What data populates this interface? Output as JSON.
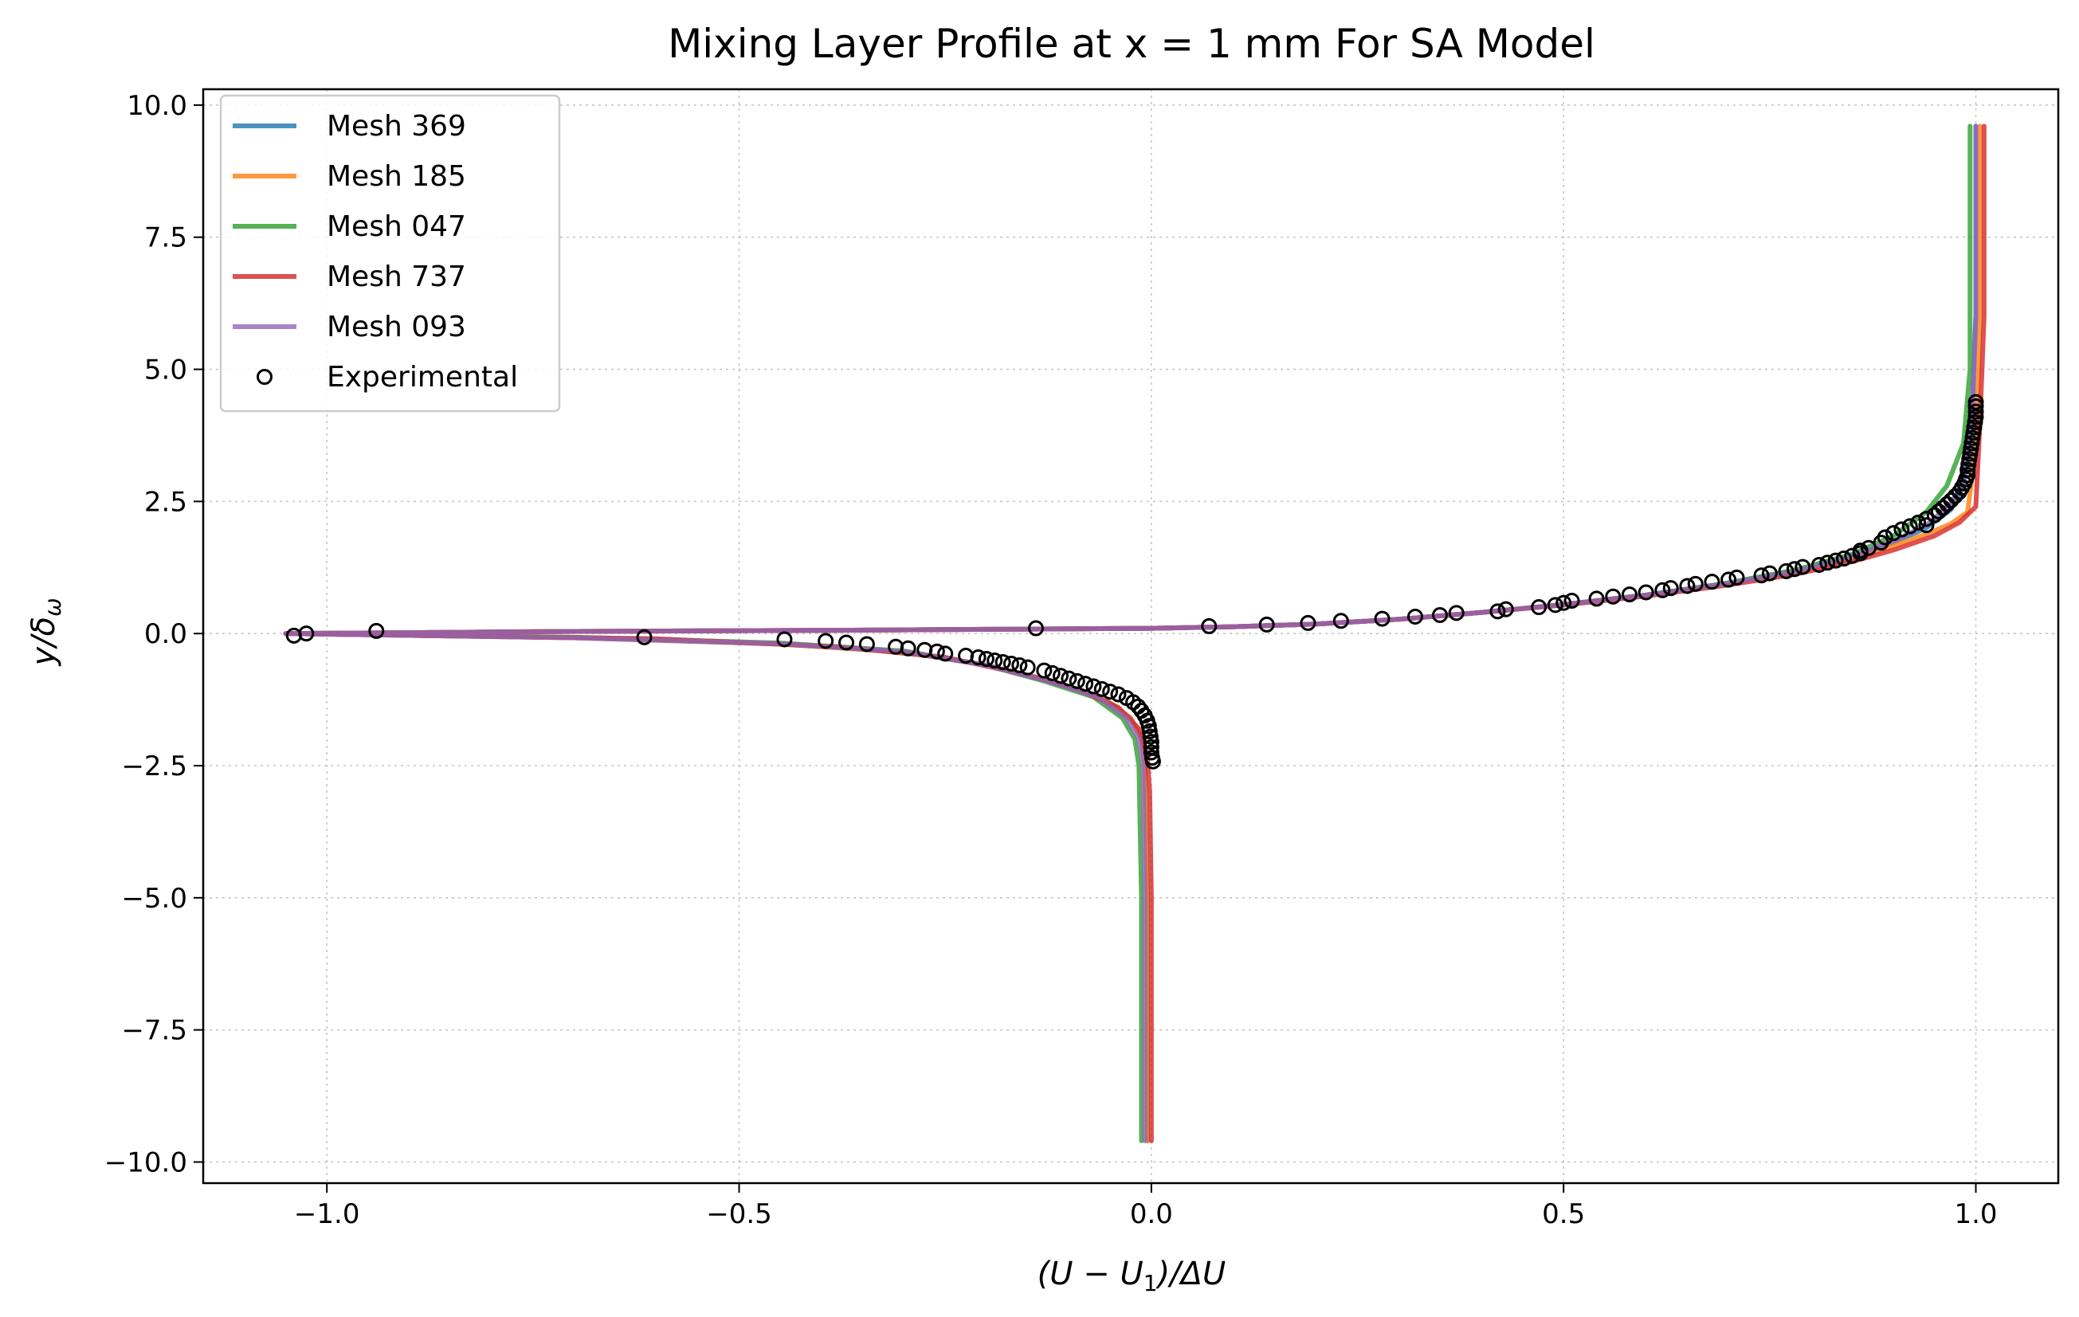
{
  "chart_data": {
    "type": "line",
    "title": "Mixing Layer Profile at x = 1 mm For SA Model",
    "xlabel": "(U − U",
    "xlabel_sub": "1",
    "xlabel_tail": ")/ΔU",
    "ylabel": "y/δ",
    "ylabel_sub": "ω",
    "xlim": [
      -1.15,
      1.1
    ],
    "ylim": [
      -10.4,
      10.3
    ],
    "xticks": [
      -1.0,
      -0.5,
      0.0,
      0.5,
      1.0
    ],
    "xtick_labels": [
      "−1.0",
      "−0.5",
      "0.0",
      "0.5",
      "1.0"
    ],
    "yticks": [
      10.0,
      7.5,
      5.0,
      2.5,
      0.0,
      -2.5,
      -5.0,
      -7.5,
      -10.0
    ],
    "ytick_labels": [
      "10.0",
      "7.5",
      "5.0",
      "2.5",
      "0.0",
      "−2.5",
      "−5.0",
      "−7.5",
      "−10.0"
    ],
    "grid": true,
    "legend_position": "top-left",
    "series": [
      {
        "name": "Mesh 369",
        "color": "#1f77b4",
        "dx": 0.0,
        "up": 1.0,
        "lo": 1.0,
        "points": [
          [
            -0.005,
            -9.6
          ],
          [
            -0.005,
            -5.0
          ],
          [
            -0.008,
            -2.5
          ],
          [
            -0.012,
            -2.0
          ],
          [
            -0.025,
            -1.6
          ],
          [
            -0.06,
            -1.2
          ],
          [
            -0.12,
            -0.9
          ],
          [
            -0.2,
            -0.6
          ],
          [
            -0.3,
            -0.35
          ],
          [
            -0.45,
            -0.2
          ],
          [
            -0.7,
            -0.08
          ],
          [
            -1.05,
            0.0
          ],
          [
            -0.7,
            0.04
          ],
          [
            -0.4,
            0.06
          ],
          [
            -0.2,
            0.08
          ],
          [
            0.0,
            0.1
          ],
          [
            0.1,
            0.13
          ],
          [
            0.2,
            0.18
          ],
          [
            0.3,
            0.27
          ],
          [
            0.4,
            0.4
          ],
          [
            0.5,
            0.55
          ],
          [
            0.6,
            0.73
          ],
          [
            0.7,
            0.95
          ],
          [
            0.78,
            1.18
          ],
          [
            0.85,
            1.45
          ],
          [
            0.9,
            1.72
          ],
          [
            0.94,
            2.0
          ],
          [
            0.97,
            2.35
          ],
          [
            0.985,
            2.8
          ],
          [
            0.995,
            4.0
          ],
          [
            1.0,
            6.0
          ],
          [
            1.0,
            9.6
          ]
        ]
      },
      {
        "name": "Mesh 185",
        "color": "#ff7f0e",
        "dx": 0.0,
        "up": 0.995,
        "lo": 1.0,
        "points": [
          [
            -0.005,
            -9.6
          ],
          [
            -0.005,
            -5.0
          ],
          [
            -0.008,
            -2.5
          ],
          [
            -0.012,
            -2.0
          ],
          [
            -0.025,
            -1.6
          ],
          [
            -0.06,
            -1.2
          ],
          [
            -0.12,
            -0.9
          ],
          [
            -0.2,
            -0.6
          ],
          [
            -0.3,
            -0.35
          ],
          [
            -0.45,
            -0.2
          ],
          [
            -0.7,
            -0.08
          ],
          [
            -1.05,
            0.0
          ],
          [
            -0.7,
            0.04
          ],
          [
            -0.4,
            0.06
          ],
          [
            -0.2,
            0.08
          ],
          [
            0.0,
            0.1
          ],
          [
            0.1,
            0.13
          ],
          [
            0.2,
            0.18
          ],
          [
            0.3,
            0.27
          ],
          [
            0.4,
            0.4
          ],
          [
            0.5,
            0.55
          ],
          [
            0.6,
            0.73
          ],
          [
            0.7,
            0.95
          ],
          [
            0.78,
            1.16
          ],
          [
            0.85,
            1.42
          ],
          [
            0.9,
            1.66
          ],
          [
            0.94,
            1.88
          ],
          [
            0.97,
            2.08
          ],
          [
            0.99,
            2.3
          ],
          [
            1.0,
            3.5
          ],
          [
            1.005,
            6.0
          ],
          [
            1.005,
            9.6
          ]
        ]
      },
      {
        "name": "Mesh 047",
        "color": "#2ca02c",
        "dx": 0.0,
        "up": 1.0,
        "lo": 1.0,
        "points": [
          [
            -0.012,
            -9.6
          ],
          [
            -0.012,
            -5.0
          ],
          [
            -0.015,
            -2.5
          ],
          [
            -0.02,
            -2.0
          ],
          [
            -0.035,
            -1.6
          ],
          [
            -0.07,
            -1.2
          ],
          [
            -0.13,
            -0.9
          ],
          [
            -0.2,
            -0.6
          ],
          [
            -0.3,
            -0.33
          ],
          [
            -0.45,
            -0.18
          ],
          [
            -0.7,
            -0.07
          ],
          [
            -1.05,
            0.0
          ],
          [
            -0.7,
            0.04
          ],
          [
            -0.4,
            0.06
          ],
          [
            -0.2,
            0.08
          ],
          [
            0.0,
            0.1
          ],
          [
            0.1,
            0.13
          ],
          [
            0.2,
            0.18
          ],
          [
            0.3,
            0.27
          ],
          [
            0.4,
            0.4
          ],
          [
            0.5,
            0.55
          ],
          [
            0.6,
            0.73
          ],
          [
            0.7,
            0.96
          ],
          [
            0.78,
            1.2
          ],
          [
            0.85,
            1.5
          ],
          [
            0.9,
            1.85
          ],
          [
            0.94,
            2.3
          ],
          [
            0.965,
            2.8
          ],
          [
            0.985,
            3.6
          ],
          [
            0.993,
            5.0
          ],
          [
            0.993,
            9.6
          ]
        ]
      },
      {
        "name": "Mesh 737",
        "color": "#d62728",
        "dx": 0.0,
        "up": 1.0,
        "lo": 1.0,
        "points": [
          [
            0.0,
            -9.6
          ],
          [
            0.0,
            -5.0
          ],
          [
            -0.002,
            -3.0
          ],
          [
            -0.005,
            -2.3
          ],
          [
            -0.015,
            -1.8
          ],
          [
            -0.04,
            -1.4
          ],
          [
            -0.09,
            -1.05
          ],
          [
            -0.16,
            -0.75
          ],
          [
            -0.25,
            -0.45
          ],
          [
            -0.38,
            -0.25
          ],
          [
            -0.6,
            -0.1
          ],
          [
            -1.05,
            0.0
          ],
          [
            -0.7,
            0.04
          ],
          [
            -0.4,
            0.06
          ],
          [
            -0.2,
            0.08
          ],
          [
            0.0,
            0.1
          ],
          [
            0.1,
            0.13
          ],
          [
            0.2,
            0.18
          ],
          [
            0.3,
            0.27
          ],
          [
            0.4,
            0.4
          ],
          [
            0.5,
            0.54
          ],
          [
            0.6,
            0.71
          ],
          [
            0.7,
            0.92
          ],
          [
            0.78,
            1.12
          ],
          [
            0.85,
            1.36
          ],
          [
            0.9,
            1.58
          ],
          [
            0.95,
            1.85
          ],
          [
            0.98,
            2.1
          ],
          [
            1.0,
            2.4
          ],
          [
            1.005,
            4.0
          ],
          [
            1.01,
            6.0
          ],
          [
            1.01,
            9.6
          ]
        ]
      },
      {
        "name": "Mesh 093",
        "color": "#9467bd",
        "dx": 0.0,
        "up": 1.0,
        "lo": 1.0,
        "points": [
          [
            -0.008,
            -9.6
          ],
          [
            -0.008,
            -5.0
          ],
          [
            -0.01,
            -2.5
          ],
          [
            -0.015,
            -2.0
          ],
          [
            -0.03,
            -1.6
          ],
          [
            -0.065,
            -1.2
          ],
          [
            -0.125,
            -0.9
          ],
          [
            -0.2,
            -0.6
          ],
          [
            -0.3,
            -0.34
          ],
          [
            -0.45,
            -0.19
          ],
          [
            -0.7,
            -0.08
          ],
          [
            -1.05,
            0.0
          ],
          [
            -0.7,
            0.04
          ],
          [
            -0.4,
            0.06
          ],
          [
            -0.2,
            0.08
          ],
          [
            0.0,
            0.1
          ],
          [
            0.1,
            0.13
          ],
          [
            0.2,
            0.18
          ],
          [
            0.3,
            0.27
          ],
          [
            0.4,
            0.4
          ],
          [
            0.5,
            0.55
          ],
          [
            0.6,
            0.73
          ],
          [
            0.7,
            0.95
          ],
          [
            0.78,
            1.17
          ],
          [
            0.85,
            1.46
          ],
          [
            0.9,
            1.75
          ],
          [
            0.94,
            2.05
          ],
          [
            0.97,
            2.45
          ],
          [
            0.985,
            2.9
          ],
          [
            0.995,
            4.0
          ],
          [
            1.0,
            6.0
          ],
          [
            1.0,
            9.6
          ]
        ]
      }
    ],
    "experimental": {
      "name": "Experimental",
      "points": [
        [
          -1.04,
          -0.04
        ],
        [
          -1.025,
          0.0
        ],
        [
          -0.94,
          0.05
        ],
        [
          -0.615,
          -0.07
        ],
        [
          -0.445,
          -0.11
        ],
        [
          -0.395,
          -0.14
        ],
        [
          -0.37,
          -0.17
        ],
        [
          -0.345,
          -0.2
        ],
        [
          -0.31,
          -0.25
        ],
        [
          -0.295,
          -0.28
        ],
        [
          -0.275,
          -0.31
        ],
        [
          -0.26,
          -0.34
        ],
        [
          -0.25,
          -0.38
        ],
        [
          -0.225,
          -0.42
        ],
        [
          -0.21,
          -0.45
        ],
        [
          -0.2,
          -0.48
        ],
        [
          -0.19,
          -0.51
        ],
        [
          -0.18,
          -0.54
        ],
        [
          -0.17,
          -0.57
        ],
        [
          -0.16,
          -0.6
        ],
        [
          -0.15,
          -0.64
        ],
        [
          -0.13,
          -0.7
        ],
        [
          -0.12,
          -0.75
        ],
        [
          -0.11,
          -0.8
        ],
        [
          -0.1,
          -0.85
        ],
        [
          -0.09,
          -0.9
        ],
        [
          -0.08,
          -0.95
        ],
        [
          -0.07,
          -1.0
        ],
        [
          -0.06,
          -1.05
        ],
        [
          -0.05,
          -1.1
        ],
        [
          -0.04,
          -1.15
        ],
        [
          -0.03,
          -1.22
        ],
        [
          -0.022,
          -1.3
        ],
        [
          -0.016,
          -1.38
        ],
        [
          -0.012,
          -1.46
        ],
        [
          -0.008,
          -1.55
        ],
        [
          -0.005,
          -1.65
        ],
        [
          -0.003,
          -1.75
        ],
        [
          -0.002,
          -1.85
        ],
        [
          -0.001,
          -1.95
        ],
        [
          0.0,
          -2.05
        ],
        [
          0.0,
          -2.15
        ],
        [
          0.0,
          -2.25
        ],
        [
          0.001,
          -2.35
        ],
        [
          0.002,
          -2.42
        ],
        [
          -0.14,
          0.1
        ],
        [
          0.07,
          0.14
        ],
        [
          0.14,
          0.17
        ],
        [
          0.19,
          0.2
        ],
        [
          0.23,
          0.24
        ],
        [
          0.28,
          0.28
        ],
        [
          0.32,
          0.32
        ],
        [
          0.35,
          0.35
        ],
        [
          0.37,
          0.39
        ],
        [
          0.42,
          0.42
        ],
        [
          0.43,
          0.46
        ],
        [
          0.47,
          0.5
        ],
        [
          0.49,
          0.54
        ],
        [
          0.5,
          0.58
        ],
        [
          0.51,
          0.62
        ],
        [
          0.54,
          0.66
        ],
        [
          0.56,
          0.7
        ],
        [
          0.58,
          0.74
        ],
        [
          0.6,
          0.78
        ],
        [
          0.62,
          0.82
        ],
        [
          0.63,
          0.86
        ],
        [
          0.65,
          0.9
        ],
        [
          0.66,
          0.94
        ],
        [
          0.68,
          0.98
        ],
        [
          0.7,
          1.02
        ],
        [
          0.71,
          1.06
        ],
        [
          0.74,
          1.1
        ],
        [
          0.75,
          1.14
        ],
        [
          0.77,
          1.18
        ],
        [
          0.78,
          1.22
        ],
        [
          0.79,
          1.26
        ],
        [
          0.81,
          1.3
        ],
        [
          0.82,
          1.34
        ],
        [
          0.83,
          1.38
        ],
        [
          0.84,
          1.42
        ],
        [
          0.85,
          1.47
        ],
        [
          0.86,
          1.52
        ],
        [
          0.86,
          1.57
        ],
        [
          0.87,
          1.62
        ],
        [
          0.885,
          1.72
        ],
        [
          0.89,
          1.82
        ],
        [
          0.9,
          1.9
        ],
        [
          0.91,
          1.97
        ],
        [
          0.92,
          2.03
        ],
        [
          0.93,
          2.1
        ],
        [
          0.94,
          2.17
        ],
        [
          0.95,
          2.24
        ],
        [
          0.955,
          2.31
        ],
        [
          0.96,
          2.38
        ],
        [
          0.965,
          2.45
        ],
        [
          0.97,
          2.52
        ],
        [
          0.975,
          2.6
        ],
        [
          0.98,
          2.68
        ],
        [
          0.983,
          2.76
        ],
        [
          0.986,
          2.84
        ],
        [
          0.988,
          2.92
        ],
        [
          0.99,
          3.0
        ],
        [
          0.99,
          3.1
        ],
        [
          0.991,
          3.2
        ],
        [
          0.992,
          3.3
        ],
        [
          0.993,
          3.4
        ],
        [
          0.994,
          3.5
        ],
        [
          0.995,
          3.6
        ],
        [
          0.996,
          3.7
        ],
        [
          0.997,
          3.8
        ],
        [
          0.998,
          3.9
        ],
        [
          0.999,
          4.0
        ],
        [
          1.0,
          4.1
        ],
        [
          1.0,
          4.2
        ],
        [
          1.0,
          4.3
        ],
        [
          1.0,
          4.38
        ],
        [
          0.94,
          2.05
        ]
      ]
    }
  }
}
